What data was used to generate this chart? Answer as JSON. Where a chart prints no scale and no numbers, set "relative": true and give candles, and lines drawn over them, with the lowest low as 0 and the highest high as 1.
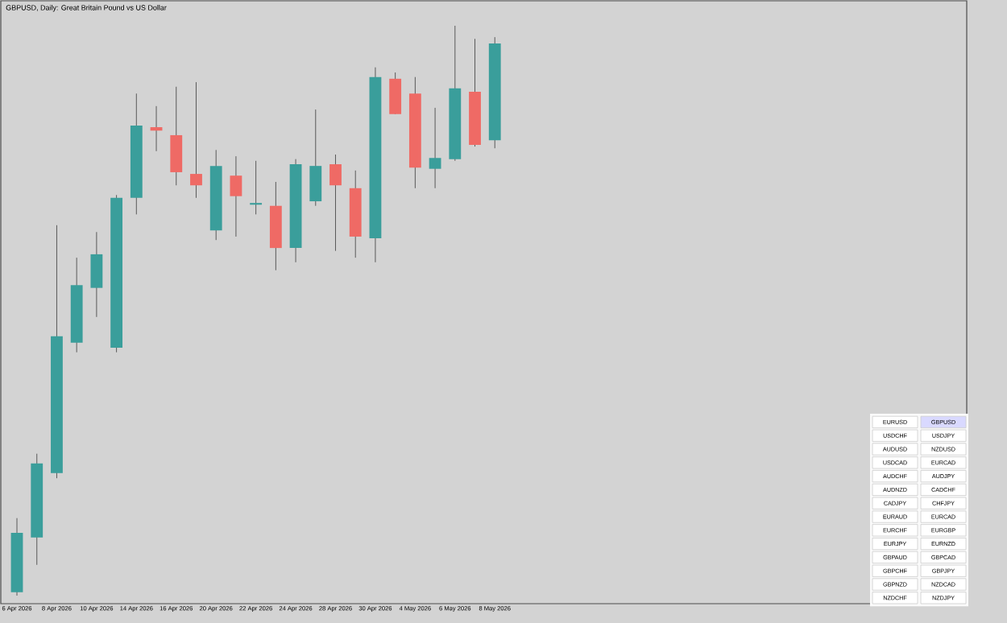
{
  "chart_data": {
    "type": "candlestick",
    "title": "GBPUSD, Daily: Great Britain Pound vs US Dollar",
    "relative": true,
    "categories": [
      "6 Apr 2026",
      null,
      "8 Apr 2026",
      null,
      "10 Apr 2026",
      null,
      "14 Apr 2026",
      null,
      "16 Apr 2026",
      null,
      "20 Apr 2026",
      null,
      "22 Apr 2026",
      null,
      "24 Apr 2026",
      null,
      "28 Apr 2026",
      null,
      "30 Apr 2026",
      null,
      "4 May 2026",
      null,
      "6 May 2026",
      null,
      "8 May 2026"
    ],
    "ohlc": [
      [
        0.006,
        0.136,
        0,
        0.11
      ],
      [
        0.102,
        0.249,
        0.054,
        0.232
      ],
      [
        0.215,
        0.65,
        0.206,
        0.455
      ],
      [
        0.444,
        0.593,
        0.427,
        0.545
      ],
      [
        0.54,
        0.638,
        0.489,
        0.599
      ],
      [
        0.435,
        0.703,
        0.427,
        0.698
      ],
      [
        0.698,
        0.881,
        0.669,
        0.825
      ],
      [
        0.822,
        0.859,
        0.78,
        0.816
      ],
      [
        0.808,
        0.893,
        0.72,
        0.743
      ],
      [
        0.74,
        0.901,
        0.698,
        0.72
      ],
      [
        0.641,
        0.782,
        0.624,
        0.754
      ],
      [
        0.737,
        0.771,
        0.63,
        0.701
      ],
      [
        0.686,
        0.763,
        0.669,
        0.689
      ],
      [
        0.684,
        0.726,
        0.571,
        0.61
      ],
      [
        0.61,
        0.766,
        0.585,
        0.757
      ],
      [
        0.692,
        0.853,
        0.684,
        0.754
      ],
      [
        0.757,
        0.774,
        0.605,
        0.72
      ],
      [
        0.715,
        0.746,
        0.593,
        0.63
      ],
      [
        0.627,
        0.927,
        0.585,
        0.91
      ],
      [
        0.907,
        0.918,
        0.845,
        0.845
      ],
      [
        0.881,
        0.91,
        0.715,
        0.751
      ],
      [
        0.749,
        0.856,
        0.715,
        0.768
      ],
      [
        0.766,
        1,
        0.763,
        0.89
      ],
      [
        0.884,
        0.977,
        0.788,
        0.791
      ],
      [
        0.799,
        0.98,
        0.785,
        0.969
      ]
    ],
    "colors": [
      "#3a9e9b",
      "#3a9e9b",
      "#3a9e9b",
      "#3a9e9b",
      "#3a9e9b",
      "#3a9e9b",
      "#3a9e9b",
      "#ef6a65",
      "#ef6a65",
      "#ef6a65",
      "#3a9e9b",
      "#ef6a65",
      "#3a9e9b",
      "#ef6a65",
      "#3a9e9b",
      "#3a9e9b",
      "#ef6a65",
      "#ef6a65",
      "#3a9e9b",
      "#ef6a65",
      "#ef6a65",
      "#3a9e9b",
      "#3a9e9b",
      "#ef6a65",
      "#3a9e9b"
    ],
    "annotations": [
      "EURUSD",
      "GBPUSD",
      "USDCHF",
      "USDJPY",
      "AUDUSD",
      "NZDUSD",
      "USDCAD",
      "EURCAD",
      "AUDCHF",
      "AUDJPY",
      "AUDNZD",
      "CADCHF",
      "CADJPY",
      "CHFJPY",
      "EURAUD",
      "EURCAD",
      "EURCHF",
      "EURGBP",
      "EURJPY",
      "EURNZD",
      "GBPAUD",
      "GBPCAD",
      "GBPCHF",
      "GBPJPY",
      "GBPNZD",
      "NZDCAD",
      "NZDCHF",
      "NZDJPY"
    ]
  }
}
